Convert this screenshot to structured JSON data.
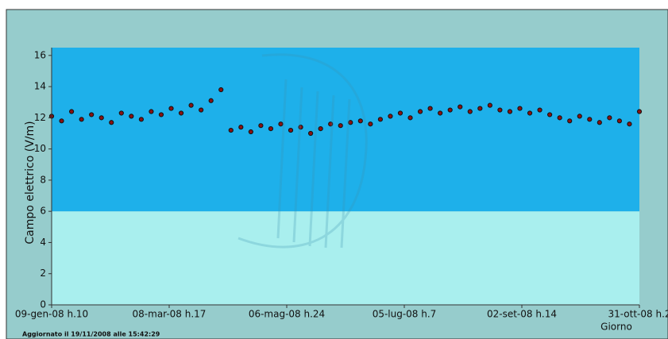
{
  "chart_data": {
    "type": "scatter",
    "xlabel": "Giorno",
    "ylabel": "Campo elettrico (V/m)",
    "footer": "Aggiornato il 19/11/2008 alle 15:42:29",
    "xlim": [
      0,
      295
    ],
    "ylim": [
      0,
      16.5
    ],
    "yticks": [
      0,
      2,
      4,
      6,
      8,
      10,
      12,
      14,
      16
    ],
    "xticks": [
      {
        "value": 0,
        "label": "09-gen-08 h.10"
      },
      {
        "value": 59,
        "label": "08-mar-08 h.17"
      },
      {
        "value": 118,
        "label": "06-mag-08 h.24"
      },
      {
        "value": 177,
        "label": "05-lug-08 h.7"
      },
      {
        "value": 236,
        "label": "02-set-08 h.14"
      },
      {
        "value": 295,
        "label": "31-ott-08 h.2"
      }
    ],
    "zones": [
      {
        "from": 0,
        "to": 6,
        "color": "#a9efee"
      },
      {
        "from": 6,
        "to": 16.5,
        "color": "#1eb0ea"
      }
    ],
    "series": [
      {
        "color": "#8b1212",
        "x": [
          0,
          5,
          10,
          15,
          20,
          25,
          30,
          35,
          40,
          45,
          50,
          55,
          60,
          65,
          70,
          75,
          80,
          85,
          90,
          95,
          100,
          105,
          110,
          115,
          120,
          125,
          130,
          135,
          140,
          145,
          150,
          155,
          160,
          165,
          170,
          175,
          180,
          185,
          190,
          195,
          200,
          205,
          210,
          215,
          220,
          225,
          230,
          235,
          240,
          245,
          250,
          255,
          260,
          265,
          270,
          275,
          280,
          285,
          290,
          295
        ],
        "values": [
          12.1,
          11.8,
          12.4,
          11.9,
          12.2,
          12.0,
          11.7,
          12.3,
          12.1,
          11.9,
          12.4,
          12.2,
          12.6,
          12.3,
          12.8,
          12.5,
          13.1,
          13.8,
          11.2,
          11.4,
          11.1,
          11.5,
          11.3,
          11.6,
          11.2,
          11.4,
          11.0,
          11.3,
          11.6,
          11.5,
          11.7,
          11.8,
          11.6,
          11.9,
          12.1,
          12.3,
          12.0,
          12.4,
          12.6,
          12.3,
          12.5,
          12.7,
          12.4,
          12.6,
          12.8,
          12.5,
          12.4,
          12.6,
          12.3,
          12.5,
          12.2,
          12.0,
          11.8,
          12.1,
          11.9,
          11.7,
          12.0,
          11.8,
          11.6,
          12.4
        ]
      }
    ]
  }
}
